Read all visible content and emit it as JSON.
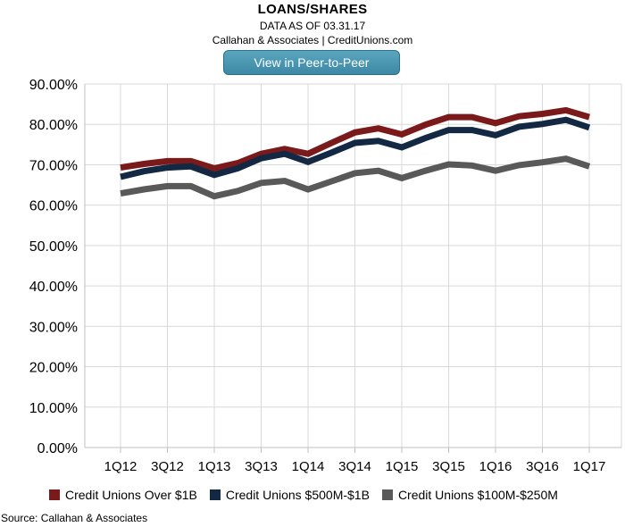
{
  "header": {
    "title": "LOANS/SHARES",
    "subtitle": "DATA AS OF 03.31.17",
    "credit": "Callahan & Associates | CreditUnions.com",
    "button_label": "View in Peer-to-Peer"
  },
  "footer": {
    "source": "Source: Callahan & Associates"
  },
  "chart_data": {
    "type": "line",
    "title": "LOANS/SHARES",
    "subtitle": "DATA AS OF 03.31.17",
    "ylim": [
      0,
      90
    ],
    "yticks": [
      "0.00%",
      "10.00%",
      "20.00%",
      "30.00%",
      "40.00%",
      "50.00%",
      "60.00%",
      "70.00%",
      "80.00%",
      "90.00%"
    ],
    "x": [
      "1Q12",
      "2Q12",
      "3Q12",
      "4Q12",
      "1Q13",
      "2Q13",
      "3Q13",
      "4Q13",
      "1Q14",
      "2Q14",
      "3Q14",
      "4Q14",
      "1Q15",
      "2Q15",
      "3Q15",
      "4Q15",
      "1Q16",
      "2Q16",
      "3Q16",
      "4Q16",
      "1Q17"
    ],
    "xtick_labels": [
      "1Q12",
      "3Q12",
      "1Q13",
      "3Q13",
      "1Q14",
      "3Q14",
      "1Q15",
      "3Q15",
      "1Q16",
      "3Q16",
      "1Q17"
    ],
    "grid": true,
    "legend_position": "bottom",
    "series": [
      {
        "name": "Credit Unions Over $1B",
        "color": "#7a1a1a",
        "values": [
          69.3,
          70.2,
          70.9,
          70.9,
          69.1,
          70.4,
          72.7,
          73.9,
          72.7,
          75.4,
          78.0,
          79.0,
          77.5,
          79.9,
          81.8,
          81.8,
          80.3,
          82.0,
          82.6,
          83.5,
          81.8
        ]
      },
      {
        "name": "Credit Unions $500M-$1B",
        "color": "#132843",
        "values": [
          67.0,
          68.4,
          69.3,
          69.6,
          67.5,
          69.1,
          71.6,
          72.7,
          70.7,
          73.0,
          75.4,
          75.9,
          74.3,
          76.6,
          78.6,
          78.6,
          77.3,
          79.4,
          80.1,
          81.1,
          79.2
        ]
      },
      {
        "name": "Credit Unions $100M-$250M",
        "color": "#595959",
        "values": [
          62.9,
          63.9,
          64.7,
          64.7,
          62.2,
          63.5,
          65.5,
          66.0,
          63.9,
          65.9,
          67.9,
          68.5,
          66.7,
          68.5,
          70.1,
          69.8,
          68.5,
          69.9,
          70.6,
          71.5,
          69.6
        ]
      }
    ]
  }
}
